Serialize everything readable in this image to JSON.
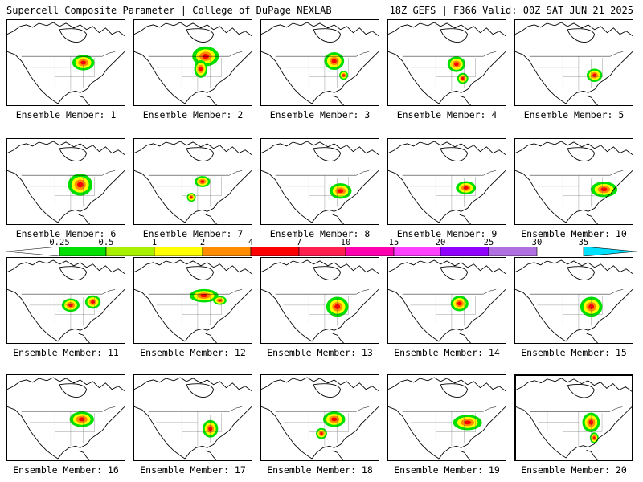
{
  "header": {
    "title": "Supercell Composite Parameter | College of DuPage NEXLAB",
    "run_info": "18Z GEFS | F366 Valid: 00Z SAT JUN 21 2025"
  },
  "colors": {
    "scale": [
      "#ffffff",
      "#00e000",
      "#a8f000",
      "#ffff00",
      "#ff8c00",
      "#ff0000",
      "#ff2050",
      "#ff00b0",
      "#ff40ff",
      "#9000ff",
      "#b070e0",
      "#00e0ff"
    ],
    "legend_labels": [
      "0.25",
      "0.5",
      "1",
      "2",
      "4",
      "7",
      "10",
      "15",
      "20",
      "25",
      "30",
      "35"
    ]
  },
  "members": [
    {
      "label": "Ensemble Member: 1"
    },
    {
      "label": "Ensemble Member: 2"
    },
    {
      "label": "Ensemble Member: 3"
    },
    {
      "label": "Ensemble Member: 4"
    },
    {
      "label": "Ensemble Member: 5"
    },
    {
      "label": "Ensemble Member: 6"
    },
    {
      "label": "Ensemble Member: 7"
    },
    {
      "label": "Ensemble Member: 8"
    },
    {
      "label": "Ensemble Member: 9"
    },
    {
      "label": "Ensemble Member: 10"
    },
    {
      "label": "Ensemble Member: 11"
    },
    {
      "label": "Ensemble Member: 12"
    },
    {
      "label": "Ensemble Member: 13"
    },
    {
      "label": "Ensemble Member: 14"
    },
    {
      "label": "Ensemble Member: 15"
    },
    {
      "label": "Ensemble Member: 16"
    },
    {
      "label": "Ensemble Member: 17"
    },
    {
      "label": "Ensemble Member: 18"
    },
    {
      "label": "Ensemble Member: 19"
    },
    {
      "label": "Ensemble Member: 20"
    }
  ]
}
